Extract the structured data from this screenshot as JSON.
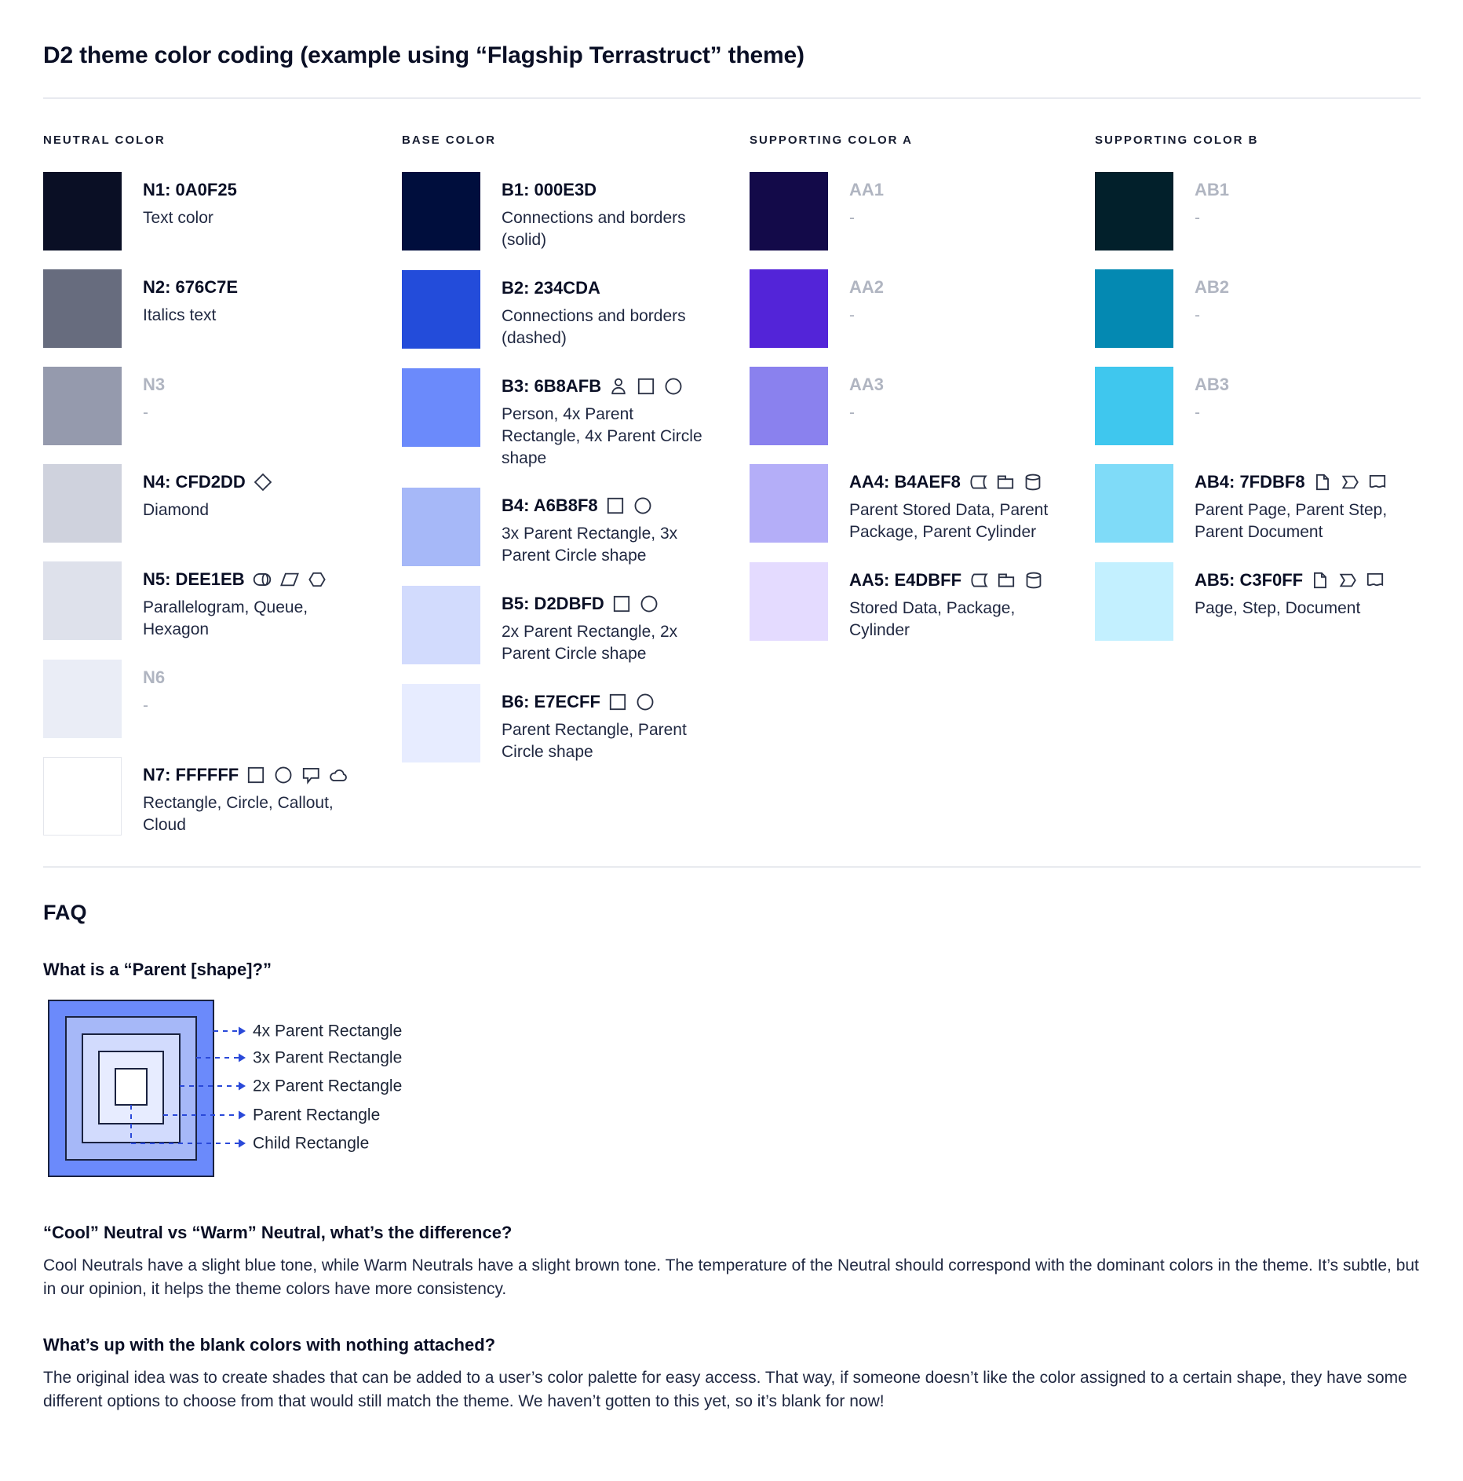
{
  "page": {
    "title": "D2 theme color coding (example using “Flagship Terrastruct” theme)"
  },
  "palette": {
    "columns": [
      {
        "header": "NEUTRAL COLOR",
        "rows": [
          {
            "code": "N1: 0A0F25",
            "swatch": "#0A0F25",
            "desc": "Text color",
            "muted": false,
            "icons": []
          },
          {
            "code": "N2: 676C7E",
            "swatch": "#676C7E",
            "desc": "Italics text",
            "muted": false,
            "icons": []
          },
          {
            "code": "N3",
            "swatch": "#959AAD",
            "desc": "-",
            "muted": true,
            "icons": []
          },
          {
            "code": "N4: CFD2DD",
            "swatch": "#CFD2DD",
            "desc": "Diamond",
            "muted": false,
            "icons": [
              "diamond"
            ]
          },
          {
            "code": "N5: DEE1EB",
            "swatch": "#DEE1EB",
            "desc": "Parallelogram, Queue, Hexagon",
            "muted": false,
            "icons": [
              "queue",
              "parallelogram",
              "hexagon"
            ]
          },
          {
            "code": "N6",
            "swatch": "#EAEDF6",
            "desc": "-",
            "muted": true,
            "icons": []
          },
          {
            "code": "N7: FFFFFF",
            "swatch": "#FFFFFF",
            "desc": "Rectangle, Circle, Callout, Cloud",
            "muted": false,
            "icons": [
              "rectangle",
              "circle",
              "callout",
              "cloud"
            ],
            "swatch_border": true
          }
        ]
      },
      {
        "header": "BASE COLOR",
        "rows": [
          {
            "code": "B1: 000E3D",
            "swatch": "#000E3D",
            "desc": "Connections and borders (solid)",
            "muted": false,
            "icons": []
          },
          {
            "code": "B2: 234CDA",
            "swatch": "#234CDA",
            "desc": "Connections and borders (dashed)",
            "muted": false,
            "icons": []
          },
          {
            "code": "B3: 6B8AFB",
            "swatch": "#6B8AFB",
            "desc": "Person, 4x Parent Rectangle, 4x Parent Circle shape",
            "muted": false,
            "icons": [
              "person",
              "rectangle",
              "circle"
            ]
          },
          {
            "code": "B4: A6B8F8",
            "swatch": "#A6B8F8",
            "desc": "3x Parent Rectangle, 3x Parent Circle shape",
            "muted": false,
            "icons": [
              "rectangle",
              "circle"
            ]
          },
          {
            "code": "B5: D2DBFD",
            "swatch": "#D2DBFD",
            "desc": "2x Parent Rectangle, 2x Parent Circle shape",
            "muted": false,
            "icons": [
              "rectangle",
              "circle"
            ]
          },
          {
            "code": "B6: E7ECFF",
            "swatch": "#E7ECFF",
            "desc": "Parent Rectangle, Parent Circle shape",
            "muted": false,
            "icons": [
              "rectangle",
              "circle"
            ]
          }
        ]
      },
      {
        "header": "SUPPORTING COLOR A",
        "rows": [
          {
            "code": "AA1",
            "swatch": "#130A49",
            "desc": "-",
            "muted": true,
            "icons": []
          },
          {
            "code": "AA2",
            "swatch": "#5324D8",
            "desc": "-",
            "muted": true,
            "icons": []
          },
          {
            "code": "AA3",
            "swatch": "#8A81EE",
            "desc": "-",
            "muted": true,
            "icons": []
          },
          {
            "code": "AA4: B4AEF8",
            "swatch": "#B4AEF8",
            "desc": "Parent Stored Data, Parent Package,  Parent Cylinder",
            "muted": false,
            "icons": [
              "stored-data",
              "package",
              "cylinder"
            ]
          },
          {
            "code": "AA5: E4DBFF",
            "swatch": "#E4DBFF",
            "desc": "Stored Data, Package, Cylinder",
            "muted": false,
            "icons": [
              "stored-data",
              "package",
              "cylinder"
            ]
          }
        ]
      },
      {
        "header": "SUPPORTING COLOR B",
        "rows": [
          {
            "code": "AB1",
            "swatch": "#02202B",
            "desc": "-",
            "muted": true,
            "icons": []
          },
          {
            "code": "AB2",
            "swatch": "#0489B2",
            "desc": "-",
            "muted": true,
            "icons": []
          },
          {
            "code": "AB3",
            "swatch": "#3FC7EE",
            "desc": "-",
            "muted": true,
            "icons": []
          },
          {
            "code": "AB4: 7FDBF8",
            "swatch": "#7FDBF8",
            "desc": "Parent Page, Parent Step, Parent Document",
            "muted": false,
            "icons": [
              "page",
              "step",
              "document"
            ]
          },
          {
            "code": "AB5: C3F0FF",
            "swatch": "#C3F0FF",
            "desc": "Page, Step, Document",
            "muted": false,
            "icons": [
              "page",
              "step",
              "document"
            ]
          }
        ]
      }
    ]
  },
  "faq": {
    "heading": "FAQ",
    "q1": "What is a “Parent [shape]?”",
    "q2": "“Cool” Neutral vs “Warm” Neutral, what’s the difference?",
    "a2": "Cool Neutrals have a slight blue tone, while Warm Neutrals have a slight brown tone. The temperature of the Neutral should correspond with the dominant colors in the theme. It’s subtle, but in our opinion, it helps the theme colors have more consistency.",
    "q3": "What’s up with the blank colors with nothing attached?",
    "a3": "The original idea was to create shades that can be added to a user’s color palette for easy access. That way, if someone doesn’t like the color assigned to a certain shape, they have some different options to choose from that would still match the theme. We haven’t gotten to this yet, so it’s blank for now!"
  },
  "diagram": {
    "levels": [
      {
        "label": "4x Parent Rectangle",
        "fill": "#6B8AFB"
      },
      {
        "label": "3x Parent Rectangle",
        "fill": "#A6B8F8"
      },
      {
        "label": "2x Parent Rectangle",
        "fill": "#D2DBFD"
      },
      {
        "label": "Parent Rectangle",
        "fill": "#E7ECFF"
      },
      {
        "label": "Child Rectangle",
        "fill": "#FFFFFF"
      }
    ],
    "arrow_color": "#2A49D9",
    "border_color": "#1A2240"
  }
}
